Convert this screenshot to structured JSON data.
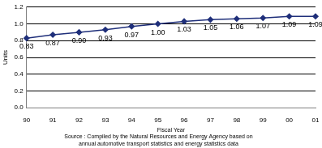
{
  "chart_data": {
    "type": "line",
    "x_label": "Fiscal Year",
    "y_label": "Units",
    "annotations": [
      "Source : Compiled by the Natural Resources and Energy Agency based on",
      "annual automotive transport statistics and energy statistics data"
    ],
    "categories": [
      "90",
      "91",
      "92",
      "93",
      "94",
      "95",
      "96",
      "97",
      "98",
      "99",
      "00",
      "01"
    ],
    "values": [
      0.83,
      0.87,
      0.9,
      0.93,
      0.97,
      1.0,
      1.03,
      1.05,
      1.06,
      1.07,
      1.09,
      1.09
    ],
    "value_labels": [
      "0.83",
      "0.87",
      "0.90",
      "0.93",
      "0.97",
      "1.00",
      "1.03",
      "1.05",
      "1.06",
      "1.07",
      "1.09",
      "1.09"
    ],
    "color": "#1f2f7a",
    "marker": "diamond",
    "line_style": "solid",
    "data_labels": true,
    "ylim": [
      0,
      1.2
    ],
    "yticks": [
      {
        "value": 0,
        "label": "0.0"
      },
      0.2,
      0.4,
      0.6,
      0.8,
      {
        "value": 1,
        "label": "1.0"
      },
      {
        "value": 1.2,
        "label": "1.2"
      }
    ],
    "grid": true
  }
}
